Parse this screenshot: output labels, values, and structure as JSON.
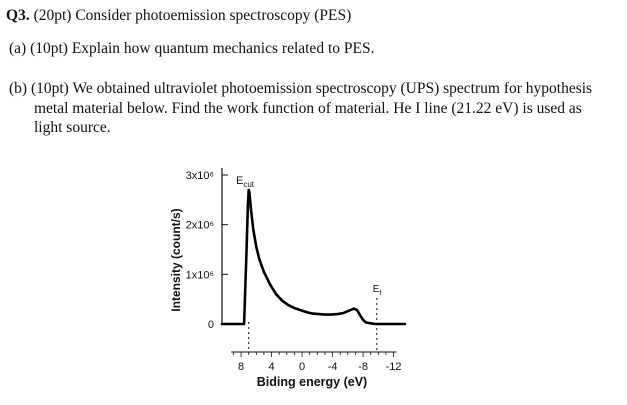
{
  "question": {
    "number": "Q3.",
    "points": "(20pt)",
    "text": "Consider photoemission spectroscopy (PES)"
  },
  "part_a": {
    "label": "(a)",
    "points": "(10pt)",
    "text": "Explain how quantum mechanics related to PES."
  },
  "part_b": {
    "label": "(b)",
    "points": "(10pt)",
    "lines": [
      "We obtained ultraviolet photoemission spectroscopy (UPS) spectrum for hypothesis",
      "metal material below. Find the work function of material. He I line (21.22 eV) is used as",
      "light source."
    ]
  },
  "chart_data": {
    "type": "line",
    "xlabel": "Biding energy (eV)",
    "ylabel": "Intensity (count/s)",
    "x_ticks": [
      8,
      4,
      0,
      -4,
      -8,
      -12
    ],
    "x_tick_labels": [
      "8",
      "4",
      "0",
      "-4",
      "-8",
      "-12"
    ],
    "y_ticks": [
      0,
      1000000,
      2000000,
      3000000
    ],
    "y_tick_labels": [
      "0",
      "1x10⁶",
      "2x10⁶",
      "3x10⁶"
    ],
    "xlim": [
      10.5,
      -13.5
    ],
    "ylim": [
      0,
      3000000
    ],
    "x_reversed": true,
    "grid": false,
    "annotations": {
      "cutoff": {
        "label_main": "E",
        "label_sub": "cut",
        "x": 7.0
      },
      "fermi": {
        "label_main": "E",
        "label_sub": "f",
        "x": -9.8
      }
    },
    "series": [
      {
        "x": [
          10.5,
          9.0,
          7.6,
          7.5,
          7.3,
          7.1,
          7.0,
          6.9,
          6.7,
          6.4,
          6.0,
          5.6,
          5.0,
          4.2,
          3.4,
          2.6,
          1.8,
          1.0,
          0.2,
          -0.6,
          -1.4,
          -2.2,
          -3.0,
          -3.8,
          -4.6,
          -5.4,
          -6.2,
          -6.8,
          -7.2,
          -7.6,
          -8.0,
          -8.4,
          -9.0,
          -9.6,
          -10.0,
          -11.0,
          -13.5
        ],
        "y": [
          0,
          0,
          0,
          500000,
          1400000,
          2400000,
          2700000,
          2650000,
          2300000,
          1900000,
          1550000,
          1300000,
          1050000,
          800000,
          600000,
          470000,
          380000,
          320000,
          280000,
          240000,
          210000,
          200000,
          190000,
          190000,
          200000,
          220000,
          270000,
          310000,
          280000,
          180000,
          80000,
          30000,
          15000,
          0,
          0,
          0,
          0
        ]
      }
    ]
  }
}
